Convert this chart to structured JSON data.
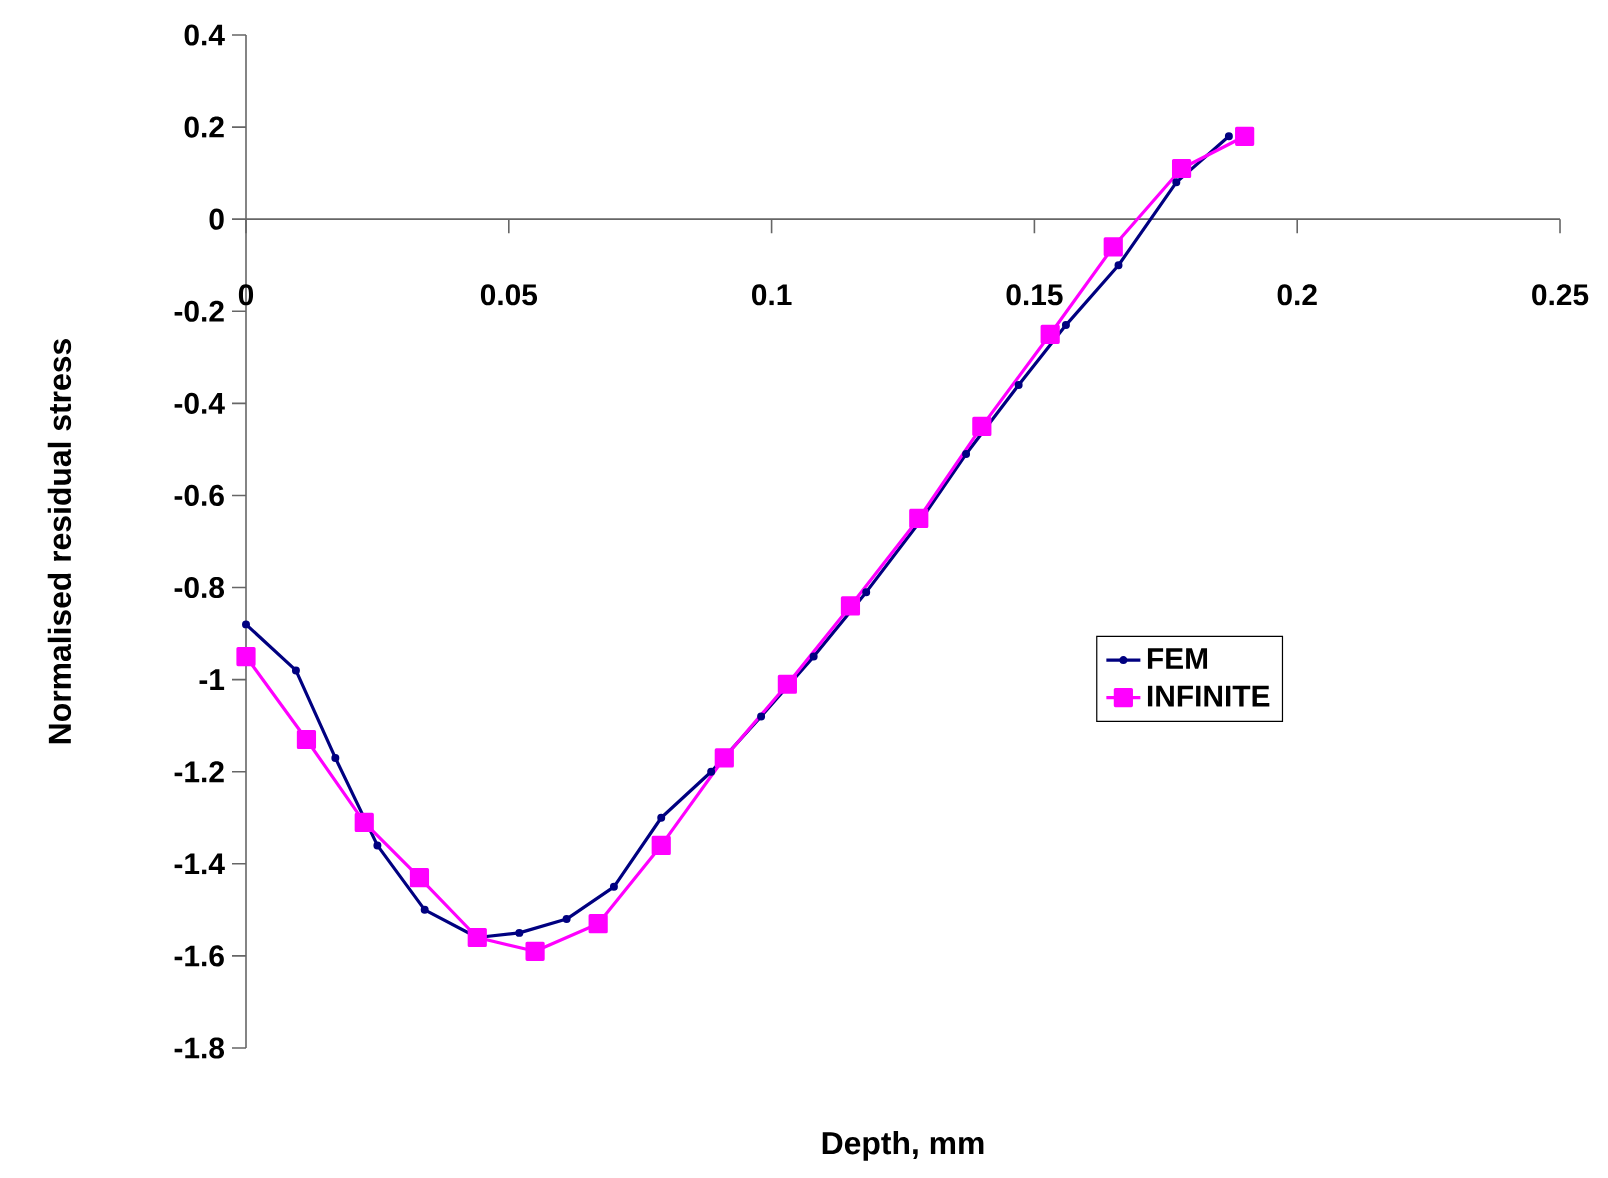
{
  "chart_data": {
    "type": "line",
    "xlabel": "Depth, mm",
    "ylabel": "Normalised residual stress",
    "xlim": [
      0,
      0.25
    ],
    "ylim": [
      -1.8,
      0.4
    ],
    "xticks": [
      0,
      0.05,
      0.1,
      0.15,
      0.2,
      0.25
    ],
    "yticks": [
      0.4,
      0.2,
      0,
      -0.2,
      -0.4,
      -0.6,
      -0.8,
      -1,
      -1.2,
      -1.4,
      -1.6,
      -1.8
    ],
    "legend": "right",
    "series": [
      {
        "name": "FEM",
        "color": "#000080",
        "marker": "circle",
        "x": [
          0,
          0.0095,
          0.017,
          0.025,
          0.034,
          0.044,
          0.052,
          0.061,
          0.07,
          0.079,
          0.0885,
          0.098,
          0.108,
          0.118,
          0.128,
          0.137,
          0.147,
          0.156,
          0.166,
          0.177,
          0.187
        ],
        "values": [
          -0.88,
          -0.98,
          -1.17,
          -1.36,
          -1.5,
          -1.56,
          -1.55,
          -1.52,
          -1.45,
          -1.3,
          -1.2,
          -1.08,
          -0.95,
          -0.81,
          -0.66,
          -0.51,
          -0.36,
          -0.23,
          -0.1,
          0.08,
          0.18
        ]
      },
      {
        "name": "INFINITE",
        "color": "#ff00ff",
        "marker": "square",
        "x": [
          0,
          0.0115,
          0.0225,
          0.033,
          0.044,
          0.055,
          0.067,
          0.079,
          0.091,
          0.103,
          0.115,
          0.128,
          0.14,
          0.153,
          0.165,
          0.178,
          0.19
        ],
        "values": [
          -0.95,
          -1.13,
          -1.31,
          -1.43,
          -1.56,
          -1.59,
          -1.53,
          -1.36,
          -1.17,
          -1.01,
          -0.84,
          -0.65,
          -0.45,
          -0.25,
          -0.06,
          0.11,
          0.18
        ]
      }
    ]
  }
}
